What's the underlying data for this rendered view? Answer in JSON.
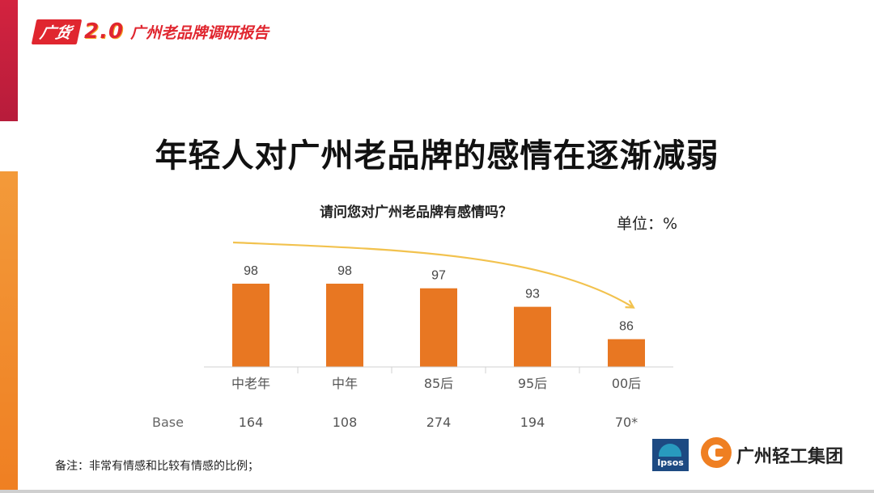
{
  "header": {
    "logo_text": "广货",
    "logo_version": "2.0",
    "report_title": "广州老品牌调研报告"
  },
  "main_title": "年轻人对广州老品牌的感情在逐渐减弱",
  "question": "请问您对广州老品牌有感情吗？",
  "unit": "单位：%",
  "note": "备注：非常有情感和比较有情感的比例；",
  "logos": {
    "ipsos": "Ipsos",
    "group_name": "广州轻工集团"
  },
  "colors": {
    "bar": "#e87722",
    "trend_arrow": "#f2c24e",
    "logo_red": "#e0262f"
  },
  "chart_data": {
    "type": "bar",
    "categories": [
      "中老年",
      "中年",
      "85后",
      "95后",
      "00后"
    ],
    "values": [
      98,
      98,
      97,
      93,
      86
    ],
    "base_label": "Base",
    "bases": [
      "164",
      "108",
      "274",
      "194",
      "70*"
    ],
    "title": "请问您对广州老品牌有感情吗？",
    "ylim": [
      80,
      100
    ],
    "grid": false,
    "legend": "none"
  }
}
